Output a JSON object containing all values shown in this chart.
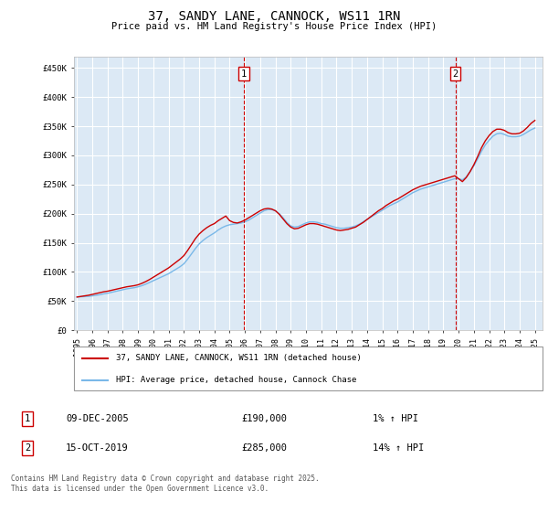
{
  "title": "37, SANDY LANE, CANNOCK, WS11 1RN",
  "subtitle": "Price paid vs. HM Land Registry's House Price Index (HPI)",
  "ylim": [
    0,
    470000
  ],
  "xlim_start": 1994.8,
  "xlim_end": 2025.5,
  "background_color": "#dce9f5",
  "plot_bg_color": "#dce9f5",
  "grid_color": "#ffffff",
  "hpi_line_color": "#7ab8e8",
  "price_line_color": "#cc0000",
  "sale1": {
    "date_label": "09-DEC-2005",
    "price": 190000,
    "hpi_change": "1%",
    "direction": "↑",
    "marker_x": 2005.94
  },
  "sale2": {
    "date_label": "15-OCT-2019",
    "price": 285000,
    "hpi_change": "14%",
    "direction": "↑",
    "marker_x": 2019.79
  },
  "legend_label1": "37, SANDY LANE, CANNOCK, WS11 1RN (detached house)",
  "legend_label2": "HPI: Average price, detached house, Cannock Chase",
  "footnote": "Contains HM Land Registry data © Crown copyright and database right 2025.\nThis data is licensed under the Open Government Licence v3.0.",
  "hpi_data": [
    [
      1995.0,
      57000
    ],
    [
      1995.25,
      57500
    ],
    [
      1995.5,
      57800
    ],
    [
      1995.75,
      58200
    ],
    [
      1996.0,
      59000
    ],
    [
      1996.25,
      60000
    ],
    [
      1996.5,
      61000
    ],
    [
      1996.75,
      62500
    ],
    [
      1997.0,
      63500
    ],
    [
      1997.25,
      65000
    ],
    [
      1997.5,
      66500
    ],
    [
      1997.75,
      68000
    ],
    [
      1998.0,
      69500
    ],
    [
      1998.25,
      71000
    ],
    [
      1998.5,
      72000
    ],
    [
      1998.75,
      73000
    ],
    [
      1999.0,
      74500
    ],
    [
      1999.25,
      76500
    ],
    [
      1999.5,
      79000
    ],
    [
      1999.75,
      82000
    ],
    [
      2000.0,
      85000
    ],
    [
      2000.25,
      88000
    ],
    [
      2000.5,
      91000
    ],
    [
      2000.75,
      94000
    ],
    [
      2001.0,
      97000
    ],
    [
      2001.25,
      101000
    ],
    [
      2001.5,
      105000
    ],
    [
      2001.75,
      109000
    ],
    [
      2002.0,
      114000
    ],
    [
      2002.25,
      122000
    ],
    [
      2002.5,
      131000
    ],
    [
      2002.75,
      140000
    ],
    [
      2003.0,
      148000
    ],
    [
      2003.25,
      154000
    ],
    [
      2003.5,
      159000
    ],
    [
      2003.75,
      163000
    ],
    [
      2004.0,
      167000
    ],
    [
      2004.25,
      172000
    ],
    [
      2004.5,
      176000
    ],
    [
      2004.75,
      179000
    ],
    [
      2005.0,
      181000
    ],
    [
      2005.25,
      182000
    ],
    [
      2005.5,
      183000
    ],
    [
      2005.75,
      184000
    ],
    [
      2006.0,
      186000
    ],
    [
      2006.25,
      189000
    ],
    [
      2006.5,
      193000
    ],
    [
      2006.75,
      197000
    ],
    [
      2007.0,
      201000
    ],
    [
      2007.25,
      205000
    ],
    [
      2007.5,
      207000
    ],
    [
      2007.75,
      207000
    ],
    [
      2008.0,
      205000
    ],
    [
      2008.25,
      200000
    ],
    [
      2008.5,
      193000
    ],
    [
      2008.75,
      185000
    ],
    [
      2009.0,
      179000
    ],
    [
      2009.25,
      177000
    ],
    [
      2009.5,
      178000
    ],
    [
      2009.75,
      181000
    ],
    [
      2010.0,
      184000
    ],
    [
      2010.25,
      186000
    ],
    [
      2010.5,
      186000
    ],
    [
      2010.75,
      185000
    ],
    [
      2011.0,
      183000
    ],
    [
      2011.25,
      182000
    ],
    [
      2011.5,
      180000
    ],
    [
      2011.75,
      178000
    ],
    [
      2012.0,
      176000
    ],
    [
      2012.25,
      175000
    ],
    [
      2012.5,
      175000
    ],
    [
      2012.75,
      176000
    ],
    [
      2013.0,
      177000
    ],
    [
      2013.25,
      179000
    ],
    [
      2013.5,
      182000
    ],
    [
      2013.75,
      186000
    ],
    [
      2014.0,
      190000
    ],
    [
      2014.25,
      194000
    ],
    [
      2014.5,
      198000
    ],
    [
      2014.75,
      202000
    ],
    [
      2015.0,
      206000
    ],
    [
      2015.25,
      210000
    ],
    [
      2015.5,
      214000
    ],
    [
      2015.75,
      217000
    ],
    [
      2016.0,
      220000
    ],
    [
      2016.25,
      224000
    ],
    [
      2016.5,
      228000
    ],
    [
      2016.75,
      232000
    ],
    [
      2017.0,
      236000
    ],
    [
      2017.25,
      239000
    ],
    [
      2017.5,
      242000
    ],
    [
      2017.75,
      244000
    ],
    [
      2018.0,
      246000
    ],
    [
      2018.25,
      248000
    ],
    [
      2018.5,
      250000
    ],
    [
      2018.75,
      252000
    ],
    [
      2019.0,
      254000
    ],
    [
      2019.25,
      256000
    ],
    [
      2019.5,
      258000
    ],
    [
      2019.75,
      260000
    ],
    [
      2020.0,
      260000
    ],
    [
      2020.25,
      258000
    ],
    [
      2020.5,
      263000
    ],
    [
      2020.75,
      272000
    ],
    [
      2021.0,
      282000
    ],
    [
      2021.25,
      294000
    ],
    [
      2021.5,
      307000
    ],
    [
      2021.75,
      318000
    ],
    [
      2022.0,
      326000
    ],
    [
      2022.25,
      333000
    ],
    [
      2022.5,
      337000
    ],
    [
      2022.75,
      338000
    ],
    [
      2023.0,
      336000
    ],
    [
      2023.25,
      333000
    ],
    [
      2023.5,
      332000
    ],
    [
      2023.75,
      332000
    ],
    [
      2024.0,
      333000
    ],
    [
      2024.25,
      336000
    ],
    [
      2024.5,
      340000
    ],
    [
      2024.75,
      344000
    ],
    [
      2025.0,
      347000
    ]
  ],
  "price_data": [
    [
      1995.0,
      57000
    ],
    [
      1995.25,
      58000
    ],
    [
      1995.5,
      59000
    ],
    [
      1995.75,
      60000
    ],
    [
      1996.0,
      61500
    ],
    [
      1996.25,
      63000
    ],
    [
      1996.5,
      64500
    ],
    [
      1996.75,
      66000
    ],
    [
      1997.0,
      67000
    ],
    [
      1997.25,
      68500
    ],
    [
      1997.5,
      70000
    ],
    [
      1997.75,
      71500
    ],
    [
      1998.0,
      73000
    ],
    [
      1998.25,
      74500
    ],
    [
      1998.5,
      75500
    ],
    [
      1998.75,
      76500
    ],
    [
      1999.0,
      78000
    ],
    [
      1999.25,
      80500
    ],
    [
      1999.5,
      83500
    ],
    [
      1999.75,
      87000
    ],
    [
      2000.0,
      91000
    ],
    [
      2000.25,
      95000
    ],
    [
      2000.5,
      99000
    ],
    [
      2000.75,
      103000
    ],
    [
      2001.0,
      107000
    ],
    [
      2001.25,
      112000
    ],
    [
      2001.5,
      117000
    ],
    [
      2001.75,
      122000
    ],
    [
      2002.0,
      128000
    ],
    [
      2002.25,
      137000
    ],
    [
      2002.5,
      147000
    ],
    [
      2002.75,
      157000
    ],
    [
      2003.0,
      165000
    ],
    [
      2003.25,
      171000
    ],
    [
      2003.5,
      176000
    ],
    [
      2003.75,
      180000
    ],
    [
      2004.0,
      183000
    ],
    [
      2004.25,
      188000
    ],
    [
      2004.5,
      192000
    ],
    [
      2004.75,
      196000
    ],
    [
      2005.0,
      188000
    ],
    [
      2005.25,
      185000
    ],
    [
      2005.5,
      184000
    ],
    [
      2005.75,
      186000
    ],
    [
      2006.0,
      189000
    ],
    [
      2006.25,
      193000
    ],
    [
      2006.5,
      197000
    ],
    [
      2006.75,
      201000
    ],
    [
      2007.0,
      205000
    ],
    [
      2007.25,
      208000
    ],
    [
      2007.5,
      209000
    ],
    [
      2007.75,
      208000
    ],
    [
      2008.0,
      205000
    ],
    [
      2008.25,
      199000
    ],
    [
      2008.5,
      191000
    ],
    [
      2008.75,
      183000
    ],
    [
      2009.0,
      177000
    ],
    [
      2009.25,
      174000
    ],
    [
      2009.5,
      175000
    ],
    [
      2009.75,
      178000
    ],
    [
      2010.0,
      181000
    ],
    [
      2010.25,
      183000
    ],
    [
      2010.5,
      183000
    ],
    [
      2010.75,
      182000
    ],
    [
      2011.0,
      180000
    ],
    [
      2011.25,
      178000
    ],
    [
      2011.5,
      176000
    ],
    [
      2011.75,
      174000
    ],
    [
      2012.0,
      172000
    ],
    [
      2012.25,
      171000
    ],
    [
      2012.5,
      172000
    ],
    [
      2012.75,
      173000
    ],
    [
      2013.0,
      175000
    ],
    [
      2013.25,
      177000
    ],
    [
      2013.5,
      181000
    ],
    [
      2013.75,
      185000
    ],
    [
      2014.0,
      190000
    ],
    [
      2014.25,
      195000
    ],
    [
      2014.5,
      200000
    ],
    [
      2014.75,
      205000
    ],
    [
      2015.0,
      209000
    ],
    [
      2015.25,
      214000
    ],
    [
      2015.5,
      218000
    ],
    [
      2015.75,
      222000
    ],
    [
      2016.0,
      225000
    ],
    [
      2016.25,
      229000
    ],
    [
      2016.5,
      233000
    ],
    [
      2016.75,
      237000
    ],
    [
      2017.0,
      241000
    ],
    [
      2017.25,
      244000
    ],
    [
      2017.5,
      247000
    ],
    [
      2017.75,
      249000
    ],
    [
      2018.0,
      251000
    ],
    [
      2018.25,
      253000
    ],
    [
      2018.5,
      255000
    ],
    [
      2018.75,
      257000
    ],
    [
      2019.0,
      259000
    ],
    [
      2019.25,
      261000
    ],
    [
      2019.5,
      263000
    ],
    [
      2019.75,
      265000
    ],
    [
      2020.0,
      260000
    ],
    [
      2020.25,
      255000
    ],
    [
      2020.5,
      262000
    ],
    [
      2020.75,
      272000
    ],
    [
      2021.0,
      284000
    ],
    [
      2021.25,
      298000
    ],
    [
      2021.5,
      313000
    ],
    [
      2021.75,
      325000
    ],
    [
      2022.0,
      334000
    ],
    [
      2022.25,
      341000
    ],
    [
      2022.5,
      345000
    ],
    [
      2022.75,
      345000
    ],
    [
      2023.0,
      343000
    ],
    [
      2023.25,
      339000
    ],
    [
      2023.5,
      337000
    ],
    [
      2023.75,
      337000
    ],
    [
      2024.0,
      338000
    ],
    [
      2024.25,
      342000
    ],
    [
      2024.5,
      348000
    ],
    [
      2024.75,
      355000
    ],
    [
      2025.0,
      360000
    ]
  ]
}
